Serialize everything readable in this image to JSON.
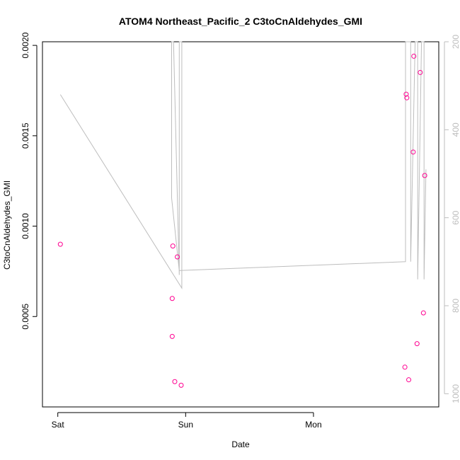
{
  "chart_data": {
    "type": "scatter",
    "title": "ATOM4 Northeast_Pacific_2 C3toCnAldehydes_GMI",
    "xlabel": "Date",
    "ylabel": "C3toCnAldehydes_GMI",
    "x_tick_labels": [
      "Sat",
      "Sun",
      "Mon"
    ],
    "x_ticks_days": [
      0,
      1,
      2
    ],
    "xlim_days": [
      -0.12,
      2.98
    ],
    "y_left": {
      "lim": [
        0.0,
        0.00202
      ],
      "ticks": [
        0.0005,
        0.001,
        0.0015,
        0.002
      ],
      "tick_labels": [
        "0.0005",
        "0.0010",
        "0.0015",
        "0.0020"
      ]
    },
    "y_right": {
      "lim": [
        1030,
        200
      ],
      "ticks": [
        200,
        400,
        600,
        800,
        1000
      ],
      "tick_labels": [
        "200",
        "400",
        "600",
        "800",
        "1000"
      ],
      "color": "#bdbdbd"
    },
    "series": [
      {
        "kind": "points",
        "axis": "left",
        "color": "#ff0090",
        "points": [
          {
            "x": 0.02,
            "y": 0.0009
          },
          {
            "x": 0.895,
            "y": 0.00039
          },
          {
            "x": 0.895,
            "y": 0.0006
          },
          {
            "x": 0.9,
            "y": 0.00089
          },
          {
            "x": 0.915,
            "y": 0.00014
          },
          {
            "x": 0.935,
            "y": 0.00083
          },
          {
            "x": 0.965,
            "y": 0.00012
          },
          {
            "x": 2.715,
            "y": 0.00022
          },
          {
            "x": 2.725,
            "y": 0.00173
          },
          {
            "x": 2.73,
            "y": 0.00171
          },
          {
            "x": 2.745,
            "y": 0.00015
          },
          {
            "x": 2.78,
            "y": 0.00141
          },
          {
            "x": 2.785,
            "y": 0.00194
          },
          {
            "x": 2.81,
            "y": 0.00035
          },
          {
            "x": 2.835,
            "y": 0.00185
          },
          {
            "x": 2.86,
            "y": 0.00052
          },
          {
            "x": 2.87,
            "y": 0.00128
          }
        ]
      },
      {
        "kind": "line",
        "axis": "right",
        "color": "#bdbdbd",
        "points": [
          {
            "x": 0.02,
            "y": 320
          },
          {
            "x": 0.97,
            "y": 760
          },
          {
            "x": 0.97,
            "y": 200
          },
          {
            "x": 0.95,
            "y": 200
          },
          {
            "x": 0.95,
            "y": 730
          },
          {
            "x": 0.905,
            "y": 200
          },
          {
            "x": 0.89,
            "y": 200
          },
          {
            "x": 0.89,
            "y": 540
          },
          {
            "x": 0.89,
            "y": 200
          },
          {
            "x": 0.89,
            "y": 555
          },
          {
            "x": 0.95,
            "y": 720
          },
          {
            "x": 2.72,
            "y": 700
          },
          {
            "x": 2.72,
            "y": 200
          },
          {
            "x": 2.76,
            "y": 200
          },
          {
            "x": 2.76,
            "y": 700
          },
          {
            "x": 2.795,
            "y": 200
          },
          {
            "x": 2.815,
            "y": 200
          },
          {
            "x": 2.815,
            "y": 740
          },
          {
            "x": 2.845,
            "y": 200
          },
          {
            "x": 2.865,
            "y": 200
          },
          {
            "x": 2.865,
            "y": 740
          },
          {
            "x": 2.88,
            "y": 490
          }
        ]
      }
    ]
  }
}
